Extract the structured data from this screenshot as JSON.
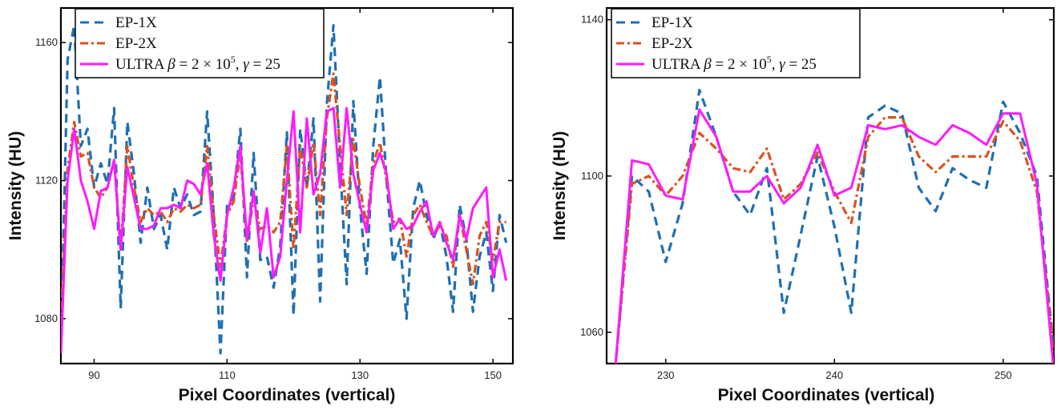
{
  "chart_data": [
    {
      "type": "line",
      "xlabel": "Pixel Coordinates (vertical)",
      "ylabel": "Intensity (HU)",
      "xlim": [
        85,
        153
      ],
      "ylim": [
        1067,
        1170
      ],
      "xticks": [
        90,
        110,
        130,
        150
      ],
      "yticks": [
        1080,
        1120,
        1160
      ],
      "legend_position": "top-left",
      "series": [
        {
          "name": "EP-1X",
          "color": "#1f6fb4",
          "dash": "dashed",
          "x": [
            85,
            86,
            87,
            88,
            89,
            90,
            91,
            92,
            93,
            94,
            95,
            96,
            97,
            98,
            99,
            100,
            101,
            102,
            103,
            104,
            105,
            106,
            107,
            108,
            109,
            110,
            111,
            112,
            113,
            114,
            115,
            116,
            117,
            118,
            119,
            120,
            121,
            122,
            123,
            124,
            125,
            126,
            127,
            128,
            129,
            130,
            131,
            132,
            133,
            134,
            135,
            136,
            137,
            138,
            139,
            140,
            141,
            142,
            143,
            144,
            145,
            146,
            147,
            148,
            149,
            150,
            151,
            152
          ],
          "y": [
            1070,
            1155,
            1165,
            1130,
            1135,
            1118,
            1125,
            1119,
            1141,
            1083,
            1137,
            1122,
            1102,
            1118,
            1106,
            1110,
            1100,
            1118,
            1112,
            1116,
            1110,
            1111,
            1140,
            1110,
            1070,
            1113,
            1115,
            1135,
            1092,
            1128,
            1097,
            1098,
            1089,
            1101,
            1134,
            1081,
            1135,
            1118,
            1138,
            1085,
            1142,
            1165,
            1125,
            1090,
            1143,
            1112,
            1093,
            1130,
            1150,
            1120,
            1096,
            1103,
            1080,
            1112,
            1120,
            1110,
            1103,
            1108,
            1098,
            1082,
            1113,
            1103,
            1082,
            1098,
            1105,
            1088,
            1110,
            1102
          ]
        },
        {
          "name": "EP-2X",
          "color": "#d9531e",
          "dash": "dashdot",
          "x": [
            85,
            86,
            87,
            88,
            89,
            90,
            91,
            92,
            93,
            94,
            95,
            96,
            97,
            98,
            99,
            100,
            101,
            102,
            103,
            104,
            105,
            106,
            107,
            108,
            109,
            110,
            111,
            112,
            113,
            114,
            115,
            116,
            117,
            118,
            119,
            120,
            121,
            122,
            123,
            124,
            125,
            126,
            127,
            128,
            129,
            130,
            131,
            132,
            133,
            134,
            135,
            136,
            137,
            138,
            139,
            140,
            141,
            142,
            143,
            144,
            145,
            146,
            147,
            148,
            149,
            150,
            151,
            152
          ],
          "y": [
            1078,
            1123,
            1137,
            1127,
            1128,
            1118,
            1115,
            1118,
            1126,
            1100,
            1130,
            1118,
            1108,
            1112,
            1110,
            1111,
            1108,
            1112,
            1111,
            1113,
            1112,
            1113,
            1130,
            1110,
            1095,
            1110,
            1114,
            1128,
            1102,
            1115,
            1106,
            1107,
            1105,
            1108,
            1130,
            1100,
            1130,
            1118,
            1131,
            1110,
            1138,
            1151,
            1130,
            1110,
            1132,
            1118,
            1107,
            1125,
            1131,
            1120,
            1108,
            1109,
            1098,
            1110,
            1113,
            1108,
            1104,
            1107,
            1104,
            1095,
            1110,
            1100,
            1090,
            1104,
            1108,
            1097,
            1108,
            1108
          ]
        },
        {
          "name": "ULTRA",
          "color": "#ff1aff",
          "dash": "solid",
          "x": [
            85,
            86,
            87,
            88,
            89,
            90,
            91,
            92,
            93,
            94,
            95,
            96,
            97,
            98,
            99,
            100,
            101,
            102,
            103,
            104,
            105,
            106,
            107,
            108,
            109,
            110,
            111,
            112,
            113,
            114,
            115,
            116,
            117,
            118,
            119,
            120,
            121,
            122,
            123,
            124,
            125,
            126,
            127,
            128,
            129,
            130,
            131,
            132,
            133,
            134,
            135,
            136,
            137,
            138,
            139,
            140,
            141,
            142,
            143,
            144,
            145,
            146,
            147,
            148,
            149,
            150,
            151,
            152
          ],
          "y": [
            1070,
            1120,
            1135,
            1120,
            1114,
            1106,
            1117,
            1118,
            1126,
            1100,
            1124,
            1115,
            1106,
            1106,
            1107,
            1112,
            1112,
            1113,
            1112,
            1120,
            1119,
            1116,
            1125,
            1104,
            1091,
            1110,
            1118,
            1130,
            1103,
            1117,
            1099,
            1112,
            1092,
            1098,
            1120,
            1140,
            1105,
            1138,
            1116,
            1122,
            1140,
            1141,
            1118,
            1141,
            1122,
            1113,
            1105,
            1123,
            1128,
            1122,
            1106,
            1109,
            1106,
            1107,
            1111,
            1114,
            1104,
            1108,
            1102,
            1097,
            1110,
            1103,
            1112,
            1115,
            1118,
            1092,
            1100,
            1091
          ]
        }
      ]
    },
    {
      "type": "line",
      "xlabel": "Pixel Coordinates (vertical)",
      "ylabel": "Intensity (HU)",
      "xlim": [
        226.5,
        253
      ],
      "ylim": [
        1052,
        1143
      ],
      "xticks": [
        230,
        240,
        250
      ],
      "yticks": [
        1060,
        1100,
        1140
      ],
      "legend_position": "top-left",
      "series": [
        {
          "name": "EP-1X",
          "color": "#1f6fb4",
          "dash": "dashed",
          "x": [
            227,
            228,
            229,
            230,
            231,
            232,
            233,
            234,
            235,
            236,
            237,
            238,
            239,
            240,
            241,
            242,
            243,
            244,
            245,
            246,
            247,
            248,
            249,
            250,
            251,
            252,
            253
          ],
          "y": [
            1050,
            1100,
            1096,
            1078,
            1093,
            1122,
            1110,
            1096,
            1090,
            1102,
            1065,
            1085,
            1105,
            1087,
            1065,
            1115,
            1118,
            1116,
            1097,
            1091,
            1102,
            1099,
            1097,
            1119,
            1111,
            1100,
            1055
          ]
        },
        {
          "name": "EP-2X",
          "color": "#d9531e",
          "dash": "dashdot",
          "x": [
            227,
            228,
            229,
            230,
            231,
            232,
            233,
            234,
            235,
            236,
            237,
            238,
            239,
            240,
            241,
            242,
            243,
            244,
            245,
            246,
            247,
            248,
            249,
            250,
            251,
            252,
            253
          ],
          "y": [
            1050,
            1098,
            1100,
            1095,
            1100,
            1111,
            1107,
            1102,
            1101,
            1107,
            1094,
            1098,
            1106,
            1096,
            1088,
            1110,
            1115,
            1115,
            1105,
            1101,
            1105,
            1105,
            1105,
            1114,
            1109,
            1096,
            1055
          ]
        },
        {
          "name": "ULTRA",
          "color": "#ff1aff",
          "dash": "solid",
          "x": [
            227,
            228,
            229,
            230,
            231,
            232,
            233,
            234,
            235,
            236,
            237,
            238,
            239,
            240,
            241,
            242,
            243,
            244,
            245,
            246,
            247,
            248,
            249,
            250,
            251,
            252,
            253
          ],
          "y": [
            1050,
            1104,
            1103,
            1095,
            1094,
            1117,
            1110,
            1096,
            1096,
            1100,
            1093,
            1097,
            1108,
            1095,
            1097,
            1113,
            1112,
            1113,
            1110,
            1108,
            1113,
            1111,
            1108,
            1116,
            1116,
            1098,
            1050
          ]
        }
      ]
    }
  ],
  "legend_text": {
    "ep1": "EP-1X",
    "ep2": "EP-2X",
    "ultra_prefix": "ULTRA",
    "beta_sym": "β",
    "beta_eq": " = 2 × 10",
    "beta_exp": "5",
    "gamma_rest": ", ",
    "gamma_sym": "γ",
    "gamma_eq": " = 25"
  }
}
